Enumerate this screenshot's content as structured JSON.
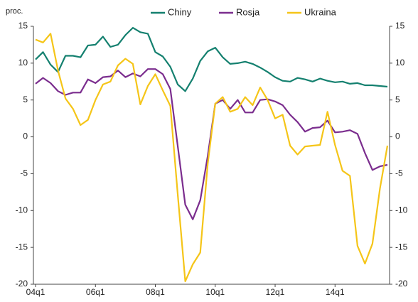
{
  "chart_data": {
    "type": "line",
    "y_label": "proc.",
    "categories": [
      "04q1",
      null,
      null,
      null,
      null,
      null,
      null,
      null,
      "06q1",
      null,
      null,
      null,
      null,
      null,
      null,
      null,
      "08q1",
      null,
      null,
      null,
      null,
      null,
      null,
      null,
      "10q1",
      null,
      null,
      null,
      null,
      null,
      null,
      null,
      "12q1",
      null,
      null,
      null,
      null,
      null,
      null,
      null,
      "14q1",
      null,
      null,
      null,
      null,
      null,
      null,
      null
    ],
    "series": [
      {
        "name": "Chiny",
        "color": "#14806f",
        "values": [
          10.5,
          11.5,
          9.8,
          8.8,
          11.0,
          11.0,
          10.8,
          12.4,
          12.5,
          13.6,
          12.2,
          12.5,
          13.8,
          14.8,
          14.2,
          14.0,
          11.5,
          10.9,
          9.5,
          7.1,
          6.2,
          7.9,
          10.3,
          11.6,
          12.1,
          10.8,
          9.9,
          10.0,
          10.2,
          9.9,
          9.4,
          8.8,
          8.1,
          7.6,
          7.5,
          8.0,
          7.8,
          7.5,
          7.9,
          7.6,
          7.4,
          7.5,
          7.2,
          7.3,
          7.0,
          7.0,
          6.9,
          6.8
        ]
      },
      {
        "name": "Rosja",
        "color": "#7b2d8e",
        "values": [
          7.2,
          8.0,
          7.3,
          6.2,
          5.7,
          6.0,
          6.0,
          7.8,
          7.3,
          8.1,
          8.2,
          9.0,
          8.1,
          8.6,
          8.2,
          9.2,
          9.2,
          8.5,
          6.5,
          -1.3,
          -9.2,
          -11.2,
          -8.6,
          -2.6,
          4.5,
          5.0,
          3.8,
          5.0,
          3.3,
          3.3,
          5.0,
          5.1,
          4.8,
          4.3,
          3.0,
          2.0,
          0.7,
          1.2,
          1.3,
          2.2,
          0.6,
          0.7,
          0.9,
          0.4,
          -2.2,
          -4.5,
          -4.0,
          -3.8
        ]
      },
      {
        "name": "Ukraina",
        "color": "#f5c518",
        "values": [
          13.2,
          12.8,
          14.0,
          9.0,
          5.2,
          3.8,
          1.6,
          2.3,
          5.0,
          7.1,
          7.5,
          9.7,
          10.6,
          9.9,
          4.4,
          6.9,
          8.5,
          6.3,
          4.2,
          -7.9,
          -19.6,
          -17.3,
          -15.7,
          -3.7,
          4.5,
          5.4,
          3.4,
          3.8,
          5.4,
          4.3,
          6.7,
          5.0,
          2.5,
          3.0,
          -1.2,
          -2.4,
          -1.3,
          -1.2,
          -1.1,
          3.4,
          -1.1,
          -4.6,
          -5.3,
          -14.8,
          -17.2,
          -14.5,
          -7.0,
          -1.2
        ]
      }
    ],
    "ylim": [
      -20,
      15
    ],
    "yticks": [
      -20,
      -15,
      -10,
      -5,
      0,
      5,
      10,
      15
    ],
    "y2lim": [
      -20,
      15
    ],
    "y2ticks": [
      -20,
      -15,
      -10,
      -5,
      0,
      5,
      10,
      15
    ],
    "legend": "top",
    "grid": false
  }
}
